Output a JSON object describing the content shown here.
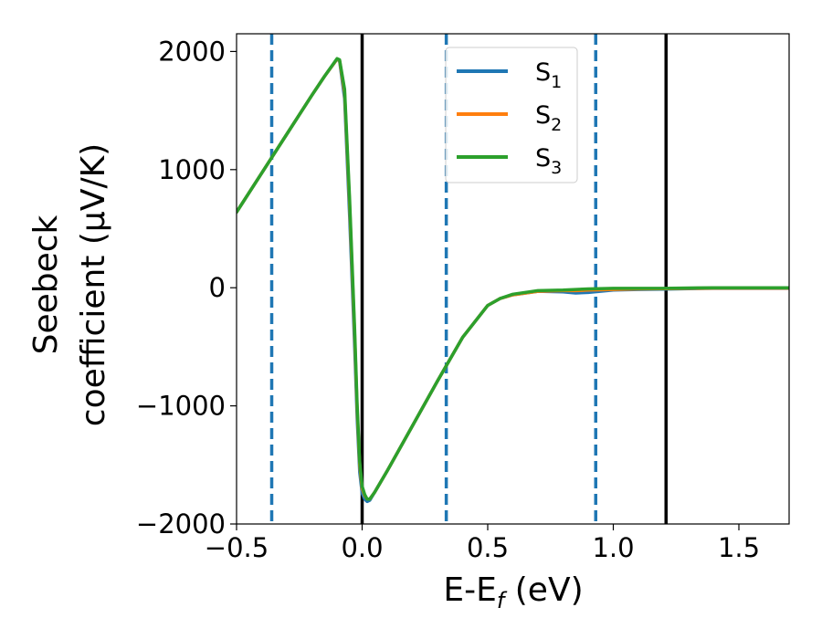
{
  "chart_data": {
    "type": "line",
    "xlabel": "E-E",
    "xlabel_sub": "f",
    "xlabel_unit": " (eV)",
    "ylabel_line1": "Seebeck",
    "ylabel_line2": "coefficient  (μV/K)",
    "xlim": [
      -0.5,
      1.7
    ],
    "ylim": [
      -2000,
      2150
    ],
    "xticks": [
      -0.5,
      0.0,
      0.5,
      1.0,
      1.5
    ],
    "xtick_labels": [
      "−0.5",
      "0.0",
      "0.5",
      "1.0",
      "1.5"
    ],
    "yticks": [
      -2000,
      -1000,
      0,
      1000,
      2000
    ],
    "ytick_labels": [
      "−2000",
      "−1000",
      "0",
      "1000",
      "2000"
    ],
    "grid": false,
    "legend_position": "top-center",
    "vlines_solid": [
      0.0,
      1.21
    ],
    "vlines_dashed": [
      -0.36,
      0.335,
      0.93
    ],
    "vline_solid_color": "#000000",
    "vline_dashed_color": "#1f77b4",
    "series": [
      {
        "name": "S",
        "sub": "1",
        "color": "#1f77b4",
        "x": [
          -0.5,
          -0.4,
          -0.3,
          -0.2,
          -0.15,
          -0.1,
          -0.09,
          -0.07,
          -0.05,
          -0.03,
          -0.02,
          -0.01,
          0.0,
          0.01,
          0.02,
          0.03,
          0.05,
          0.1,
          0.2,
          0.3,
          0.4,
          0.5,
          0.55,
          0.6,
          0.7,
          0.8,
          0.85,
          0.9,
          1.0,
          1.1,
          1.2,
          1.3,
          1.4,
          1.5,
          1.6,
          1.7
        ],
        "y": [
          640,
          970,
          1300,
          1630,
          1790,
          1935,
          1920,
          1600,
          600,
          -500,
          -1100,
          -1560,
          -1740,
          -1790,
          -1810,
          -1800,
          -1730,
          -1550,
          -1170,
          -790,
          -420,
          -150,
          -90,
          -60,
          -30,
          -35,
          -45,
          -40,
          -20,
          -15,
          -12,
          -8,
          -5,
          -5,
          -5,
          -5
        ]
      },
      {
        "name": "S",
        "sub": "2",
        "color": "#ff7f0e",
        "x": [
          -0.5,
          -0.4,
          -0.3,
          -0.2,
          -0.15,
          -0.1,
          -0.09,
          -0.07,
          -0.05,
          -0.03,
          -0.02,
          -0.01,
          0.0,
          0.01,
          0.02,
          0.03,
          0.05,
          0.1,
          0.2,
          0.3,
          0.4,
          0.5,
          0.55,
          0.6,
          0.7,
          0.8,
          0.85,
          0.9,
          1.0,
          1.1,
          1.2,
          1.3,
          1.4,
          1.5,
          1.6,
          1.7
        ],
        "y": [
          640,
          970,
          1300,
          1630,
          1790,
          1935,
          1925,
          1650,
          700,
          -400,
          -1020,
          -1500,
          -1700,
          -1760,
          -1790,
          -1790,
          -1730,
          -1550,
          -1170,
          -790,
          -420,
          -150,
          -90,
          -60,
          -30,
          -25,
          -25,
          -20,
          -15,
          -10,
          -8,
          -5,
          -3,
          -3,
          -3,
          -3
        ]
      },
      {
        "name": "S",
        "sub": "3",
        "color": "#2ca02c",
        "x": [
          -0.5,
          -0.4,
          -0.3,
          -0.2,
          -0.15,
          -0.1,
          -0.09,
          -0.07,
          -0.05,
          -0.03,
          -0.02,
          -0.01,
          0.0,
          0.01,
          0.02,
          0.03,
          0.05,
          0.1,
          0.2,
          0.3,
          0.4,
          0.5,
          0.55,
          0.6,
          0.7,
          0.8,
          0.85,
          0.9,
          1.0,
          1.1,
          1.2,
          1.3,
          1.4,
          1.5,
          1.6,
          1.7
        ],
        "y": [
          640,
          970,
          1300,
          1630,
          1790,
          1940,
          1930,
          1680,
          750,
          -350,
          -980,
          -1470,
          -1680,
          -1750,
          -1790,
          -1790,
          -1730,
          -1550,
          -1170,
          -790,
          -420,
          -150,
          -90,
          -55,
          -25,
          -20,
          -15,
          -10,
          -5,
          -5,
          -5,
          -2,
          0,
          0,
          0,
          0
        ]
      }
    ]
  }
}
